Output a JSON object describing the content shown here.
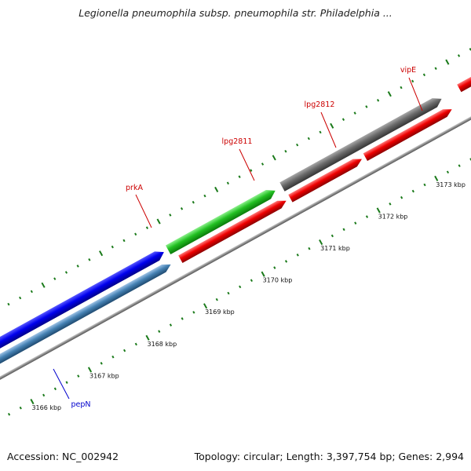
{
  "title": "Legionella pneumophila subsp. pneumophila str. Philadelphia ...",
  "footer": {
    "accession": "Accession: NC_002942",
    "summary": "Topology: circular; Length: 3,397,754 bp; Genes: 2,994"
  },
  "colors": {
    "background": "#ffffff",
    "backbone": "#8a8a8a",
    "tick": "#1a7a1a",
    "label_red": "#cc0000",
    "label_blue": "#0000cc"
  },
  "ticks": [
    {
      "label": "3166 kbp"
    },
    {
      "label": "3167 kbp"
    },
    {
      "label": "3168 kbp"
    },
    {
      "label": "3169 kbp"
    },
    {
      "label": "3170 kbp"
    },
    {
      "label": "3171 kbp"
    },
    {
      "label": "3172 kbp"
    },
    {
      "label": "3173 kbp"
    }
  ],
  "features": [
    {
      "name": "pepN",
      "label": "pepN",
      "color": "blue",
      "strand": "forward",
      "label_color": "label_blue"
    },
    {
      "name": "pepN-cds",
      "label": "",
      "color": "steelblue",
      "strand": "forward"
    },
    {
      "name": "prkA",
      "label": "prkA",
      "color": "green",
      "strand": "forward",
      "label_color": "label_red"
    },
    {
      "name": "prkA-cds",
      "label": "",
      "color": "red",
      "strand": "forward"
    },
    {
      "name": "lpg2811",
      "label": "lpg2811",
      "color": "red",
      "strand": "forward",
      "label_color": "label_red"
    },
    {
      "name": "lpg2812",
      "label": "lpg2812",
      "color": "red",
      "strand": "forward",
      "label_color": "label_red"
    },
    {
      "name": "gray-gene",
      "label": "",
      "color": "gray",
      "strand": "forward"
    },
    {
      "name": "vipE",
      "label": "vipE",
      "color": "red",
      "strand": "forward",
      "label_color": "label_red"
    }
  ]
}
